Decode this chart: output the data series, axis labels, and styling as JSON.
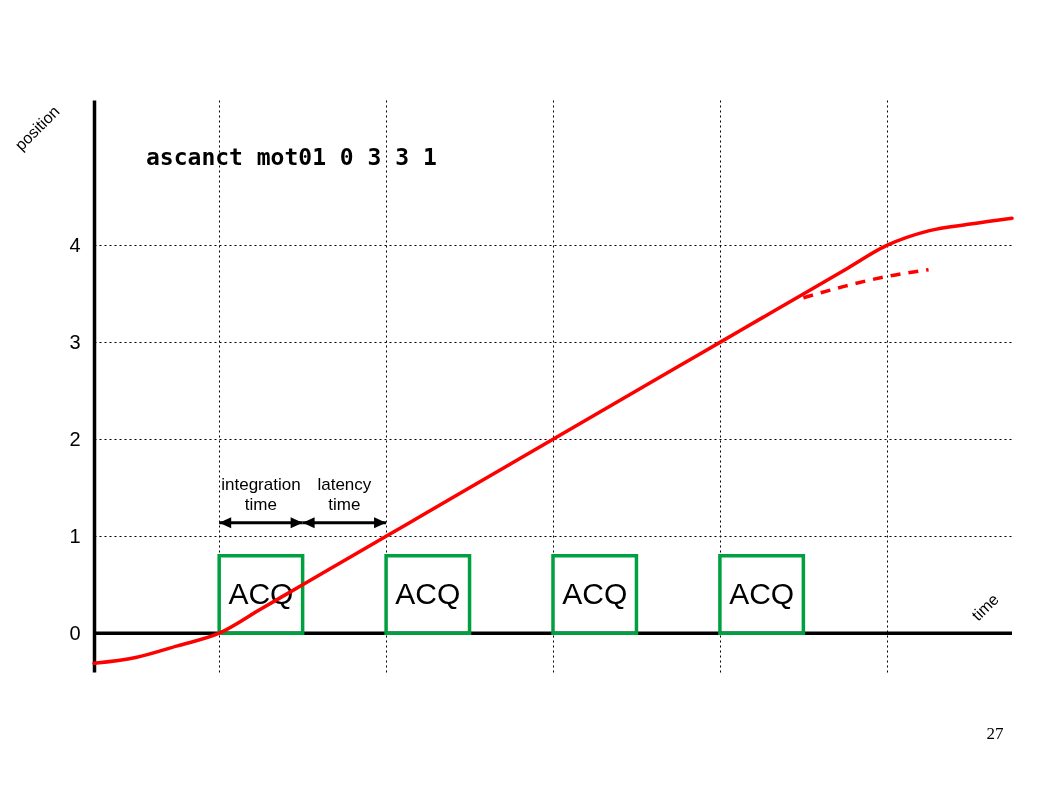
{
  "chart_data": {
    "type": "line",
    "title": "ascanct mot01 0 3 3 1",
    "xlabel": "time",
    "ylabel": "position",
    "categories": [
      null,
      null,
      null,
      null,
      null,
      null,
      null,
      null,
      null,
      null,
      null,
      null,
      null,
      null,
      null,
      null,
      null,
      null,
      null,
      null,
      null,
      null,
      null
    ],
    "ylim": [
      -0.4,
      5.5
    ],
    "yticks": [
      0,
      1,
      2,
      3,
      4
    ],
    "tick_labels": "y",
    "grid": true,
    "series": [
      {
        "color": "#ff0000",
        "values": [
          -0.31,
          -0.25,
          -0.13,
          0,
          0.25,
          0.5,
          0.75,
          1,
          1.25,
          1.5,
          1.75,
          2,
          2.25,
          2.5,
          2.75,
          3,
          3.25,
          3.5,
          3.75,
          4,
          4.15,
          4.22,
          4.28
        ]
      },
      {
        "color": "#ff0000",
        "line_style": "dashed",
        "values": [
          null,
          null,
          null,
          null,
          null,
          null,
          null,
          null,
          null,
          null,
          null,
          null,
          null,
          null,
          null,
          null,
          null,
          3.46,
          3.58,
          3.68,
          3.75,
          null,
          null
        ]
      },
      {
        "type": "bar",
        "color": "#00a040",
        "values": [
          null,
          null,
          null,
          null,
          0.8,
          null,
          null,
          null,
          0.8,
          null,
          null,
          null,
          0.8,
          null,
          null,
          null,
          0.8,
          null,
          null,
          null,
          null,
          null,
          null
        ],
        "value_labels": [
          null,
          null,
          null,
          null,
          "ACQ",
          null,
          null,
          null,
          "ACQ",
          null,
          null,
          null,
          "ACQ",
          null,
          null,
          null,
          "ACQ",
          null,
          null,
          null,
          null,
          null,
          null
        ]
      }
    ],
    "annotations": [
      "integration time",
      "latency time",
      "27"
    ]
  }
}
